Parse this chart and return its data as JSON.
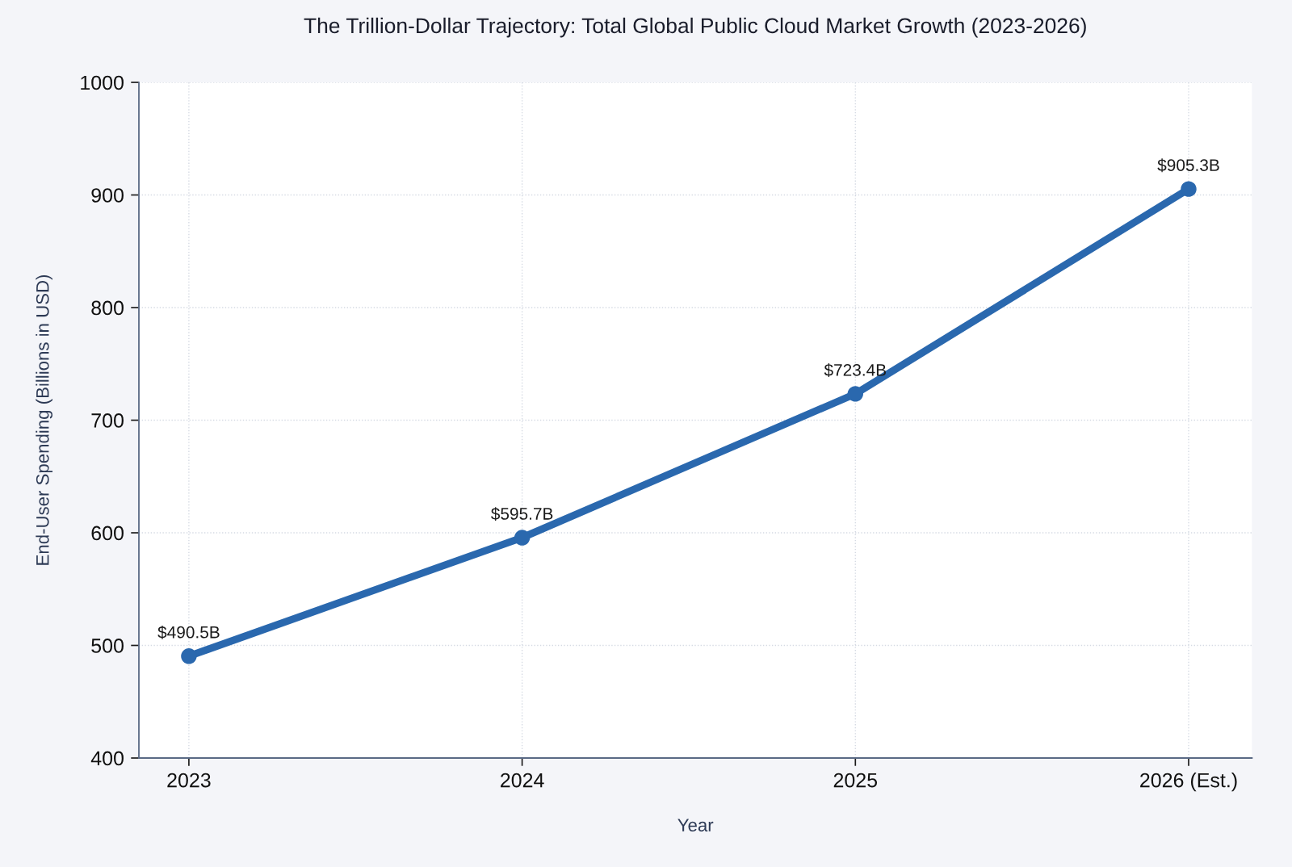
{
  "chart_data": {
    "type": "line",
    "title": "The Trillion-Dollar Trajectory: Total Global Public Cloud Market Growth (2023-2026)",
    "xlabel": "Year",
    "ylabel": "End-User Spending (Billions in USD)",
    "categories": [
      "2023",
      "2024",
      "2025",
      "2026 (Est.)"
    ],
    "series": [
      {
        "color": "#2a68ae",
        "values": [
          490.5,
          595.7,
          723.4,
          905.3
        ],
        "value_labels": [
          "$490.5B",
          "$595.7B",
          "$723.4B",
          "$905.3B"
        ]
      }
    ],
    "ylim": [
      400,
      1000
    ],
    "yticks": [
      400,
      500,
      600,
      700,
      800,
      900,
      1000
    ],
    "grid": true,
    "marker": "circle",
    "line_style": "solid"
  }
}
